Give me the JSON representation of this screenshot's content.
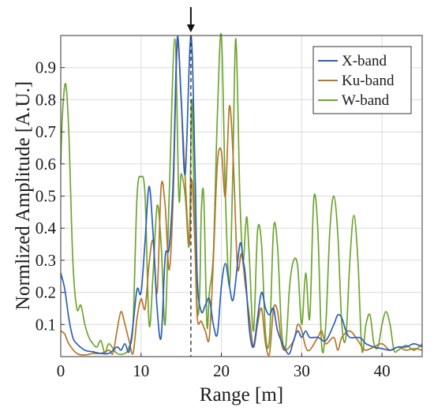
{
  "chart_data": {
    "type": "line",
    "title": "",
    "xlabel": "Range [m]",
    "ylabel": "Normlized Amplitude [A.U.]",
    "xlim": [
      0,
      45
    ],
    "ylim": [
      0,
      1
    ],
    "xticks": [
      0,
      10,
      20,
      30,
      40
    ],
    "yticks": [
      0.1,
      0.2,
      0.3,
      0.4,
      0.5,
      0.6,
      0.7,
      0.8,
      0.9
    ],
    "grid": true,
    "legend_position": "top-right",
    "marker": {
      "type": "dashed-vertical-line-with-arrow",
      "x": 16.2
    },
    "series": [
      {
        "name": "X-band",
        "color": "#2b5fb8",
        "points": [
          [
            0,
            0.26
          ],
          [
            0.5,
            0.21
          ],
          [
            1,
            0.12
          ],
          [
            1.5,
            0.06
          ],
          [
            2,
            0.04
          ],
          [
            3,
            0.02
          ],
          [
            4,
            0.015
          ],
          [
            5,
            0.01
          ],
          [
            6,
            0.01
          ],
          [
            7,
            0.03
          ],
          [
            7.5,
            0.02
          ],
          [
            8,
            0.04
          ],
          [
            8.5,
            0.015
          ],
          [
            9,
            0.1
          ],
          [
            9.5,
            0.21
          ],
          [
            10,
            0.2
          ],
          [
            10.5,
            0.36
          ],
          [
            11,
            0.53
          ],
          [
            11.5,
            0.38
          ],
          [
            12,
            0.15
          ],
          [
            12.5,
            0.06
          ],
          [
            13,
            0.31
          ],
          [
            13.5,
            0.34
          ],
          [
            14,
            0.55
          ],
          [
            14.5,
            0.99
          ],
          [
            15,
            0.8
          ],
          [
            15.5,
            0.57
          ],
          [
            16.2,
            1.0
          ],
          [
            16.7,
            0.6
          ],
          [
            17,
            0.24
          ],
          [
            17.5,
            0.14
          ],
          [
            18,
            0.16
          ],
          [
            18.5,
            0.18
          ],
          [
            19,
            0.1
          ],
          [
            19.5,
            0.07
          ],
          [
            20,
            0.22
          ],
          [
            20.5,
            0.29
          ],
          [
            21,
            0.22
          ],
          [
            21.5,
            0.18
          ],
          [
            22.3,
            0.35
          ],
          [
            22.7,
            0.3
          ],
          [
            23,
            0.25
          ],
          [
            23.5,
            0.08
          ],
          [
            24,
            0.03
          ],
          [
            24.5,
            0.12
          ],
          [
            25,
            0.2
          ],
          [
            25.5,
            0.15
          ],
          [
            26,
            0.13
          ],
          [
            26.5,
            0.15
          ],
          [
            27,
            0.08
          ],
          [
            28,
            0.02
          ],
          [
            28.5,
            0.01
          ],
          [
            29,
            0.05
          ],
          [
            29.5,
            0.08
          ],
          [
            30,
            0.06
          ],
          [
            30.5,
            0.08
          ],
          [
            31,
            0.06
          ],
          [
            32,
            0.06
          ],
          [
            33,
            0.05
          ],
          [
            34,
            0.1
          ],
          [
            34.5,
            0.13
          ],
          [
            35,
            0.12
          ],
          [
            35.5,
            0.08
          ],
          [
            36,
            0.06
          ],
          [
            37,
            0.06
          ],
          [
            37.5,
            0.055
          ],
          [
            38,
            0.04
          ],
          [
            39,
            0.03
          ],
          [
            40,
            0.025
          ],
          [
            41,
            0.02
          ],
          [
            42,
            0.03
          ],
          [
            43,
            0.03
          ],
          [
            44,
            0.04
          ],
          [
            45,
            0.03
          ]
        ]
      },
      {
        "name": "Ku-band",
        "color": "#b5762c",
        "points": [
          [
            0,
            0.08
          ],
          [
            0.5,
            0.07
          ],
          [
            1,
            0.04
          ],
          [
            2,
            0.01
          ],
          [
            3,
            0.005
          ],
          [
            4,
            0.01
          ],
          [
            5,
            0.01
          ],
          [
            6,
            0.02
          ],
          [
            6.5,
            0.01
          ],
          [
            7,
            0.08
          ],
          [
            7.5,
            0.14
          ],
          [
            8,
            0.1
          ],
          [
            8.5,
            0.05
          ],
          [
            9,
            0.01
          ],
          [
            9.5,
            0.12
          ],
          [
            10,
            0.18
          ],
          [
            10.5,
            0.15
          ],
          [
            11,
            0.29
          ],
          [
            11.5,
            0.36
          ],
          [
            12,
            0.2
          ],
          [
            12.5,
            0.53
          ],
          [
            13,
            0.47
          ],
          [
            13.5,
            0.27
          ],
          [
            14,
            0.5
          ],
          [
            14.5,
            0.97
          ],
          [
            15,
            0.8
          ],
          [
            15.5,
            0.55
          ],
          [
            16,
            0.35
          ],
          [
            16.3,
            0.55
          ],
          [
            16.7,
            0.35
          ],
          [
            17,
            0.12
          ],
          [
            17.5,
            0.11
          ],
          [
            18,
            0.08
          ],
          [
            18.5,
            0.06
          ],
          [
            19,
            0.3
          ],
          [
            19.5,
            0.6
          ],
          [
            20,
            0.64
          ],
          [
            20.5,
            0.5
          ],
          [
            21,
            0.78
          ],
          [
            21.5,
            0.6
          ],
          [
            22,
            0.28
          ],
          [
            22.5,
            0.32
          ],
          [
            23,
            0.22
          ],
          [
            23.5,
            0.12
          ],
          [
            24,
            0.03
          ],
          [
            24.5,
            0.1
          ],
          [
            25,
            0.15
          ],
          [
            25.5,
            0.04
          ],
          [
            26,
            0.01
          ],
          [
            26.5,
            0.15
          ],
          [
            27,
            0.14
          ],
          [
            27.5,
            0.04
          ],
          [
            28,
            0.02
          ],
          [
            29,
            0.05
          ],
          [
            29.5,
            0.1
          ],
          [
            30,
            0.08
          ],
          [
            30.5,
            0.03
          ],
          [
            31,
            0.02
          ],
          [
            32,
            0.06
          ],
          [
            32.5,
            0.08
          ],
          [
            33,
            0.04
          ],
          [
            34,
            0.06
          ],
          [
            34.5,
            0.02
          ],
          [
            35,
            0.06
          ],
          [
            36,
            0.08
          ],
          [
            37,
            0.05
          ],
          [
            37.5,
            0.03
          ],
          [
            38,
            0.02
          ],
          [
            39,
            0.03
          ],
          [
            40,
            0.04
          ],
          [
            41,
            0.02
          ],
          [
            42,
            0.03
          ],
          [
            43,
            0.02
          ],
          [
            44,
            0.025
          ],
          [
            45,
            0.02
          ]
        ]
      },
      {
        "name": "W-band",
        "color": "#6ea52f",
        "points": [
          [
            0,
            0.6
          ],
          [
            0.2,
            0.75
          ],
          [
            0.6,
            0.85
          ],
          [
            1,
            0.7
          ],
          [
            1.5,
            0.3
          ],
          [
            2,
            0.15
          ],
          [
            2.5,
            0.16
          ],
          [
            3,
            0.1
          ],
          [
            3.5,
            0.06
          ],
          [
            4,
            0.04
          ],
          [
            4.5,
            0.03
          ],
          [
            5,
            0.05
          ],
          [
            5.5,
            0.01
          ],
          [
            6,
            0.04
          ],
          [
            7,
            0.01
          ],
          [
            8,
            0.01
          ],
          [
            8.5,
            0.03
          ],
          [
            9,
            0.1
          ],
          [
            9.5,
            0.5
          ],
          [
            10,
            0.56
          ],
          [
            10.5,
            0.5
          ],
          [
            11,
            0.1
          ],
          [
            11.5,
            0.26
          ],
          [
            12,
            0.47
          ],
          [
            12.5,
            0.35
          ],
          [
            13,
            0.1
          ],
          [
            13.5,
            0.5
          ],
          [
            14.2,
            0.99
          ],
          [
            14.7,
            0.5
          ],
          [
            15,
            0.57
          ],
          [
            15.5,
            0.5
          ],
          [
            16,
            0.35
          ],
          [
            16.3,
            0.8
          ],
          [
            16.6,
            0.5
          ],
          [
            17,
            0.15
          ],
          [
            17.3,
            0.2
          ],
          [
            17.5,
            0.45
          ],
          [
            17.8,
            0.5
          ],
          [
            18.2,
            0.1
          ],
          [
            18.5,
            0.2
          ],
          [
            19,
            0.32
          ],
          [
            19.5,
            0.75
          ],
          [
            20,
            1.0
          ],
          [
            20.5,
            0.5
          ],
          [
            21,
            0.22
          ],
          [
            21.4,
            0.55
          ],
          [
            21.8,
            0.99
          ],
          [
            22.3,
            0.5
          ],
          [
            22.7,
            0.3
          ],
          [
            23,
            0.4
          ],
          [
            23.2,
            0.43
          ],
          [
            23.5,
            0.3
          ],
          [
            24,
            0.08
          ],
          [
            24.5,
            0.39
          ],
          [
            25,
            0.35
          ],
          [
            25.5,
            0.07
          ],
          [
            26,
            0.06
          ],
          [
            26.5,
            0.4
          ],
          [
            27,
            0.34
          ],
          [
            27.5,
            0.08
          ],
          [
            28,
            0.03
          ],
          [
            28.5,
            0.22
          ],
          [
            29,
            0.3
          ],
          [
            29.5,
            0.28
          ],
          [
            30,
            0.1
          ],
          [
            30.5,
            0.26
          ],
          [
            31,
            0.12
          ],
          [
            31.5,
            0.49
          ],
          [
            32,
            0.4
          ],
          [
            32.5,
            0.03
          ],
          [
            33,
            0.1
          ],
          [
            33.5,
            0.39
          ],
          [
            34,
            0.5
          ],
          [
            34.5,
            0.38
          ],
          [
            35,
            0.1
          ],
          [
            35.5,
            0.06
          ],
          [
            36,
            0.3
          ],
          [
            36.5,
            0.44
          ],
          [
            37,
            0.3
          ],
          [
            37.5,
            0.02
          ],
          [
            38,
            0.1
          ],
          [
            38.5,
            0.13
          ],
          [
            39,
            0.04
          ],
          [
            39.5,
            0.03
          ],
          [
            40,
            0.1
          ],
          [
            40.5,
            0.14
          ],
          [
            41,
            0.1
          ],
          [
            41.5,
            0.02
          ],
          [
            42,
            0.02
          ],
          [
            43,
            0.035
          ],
          [
            44,
            0.02
          ],
          [
            45,
            0.04
          ]
        ]
      }
    ]
  }
}
